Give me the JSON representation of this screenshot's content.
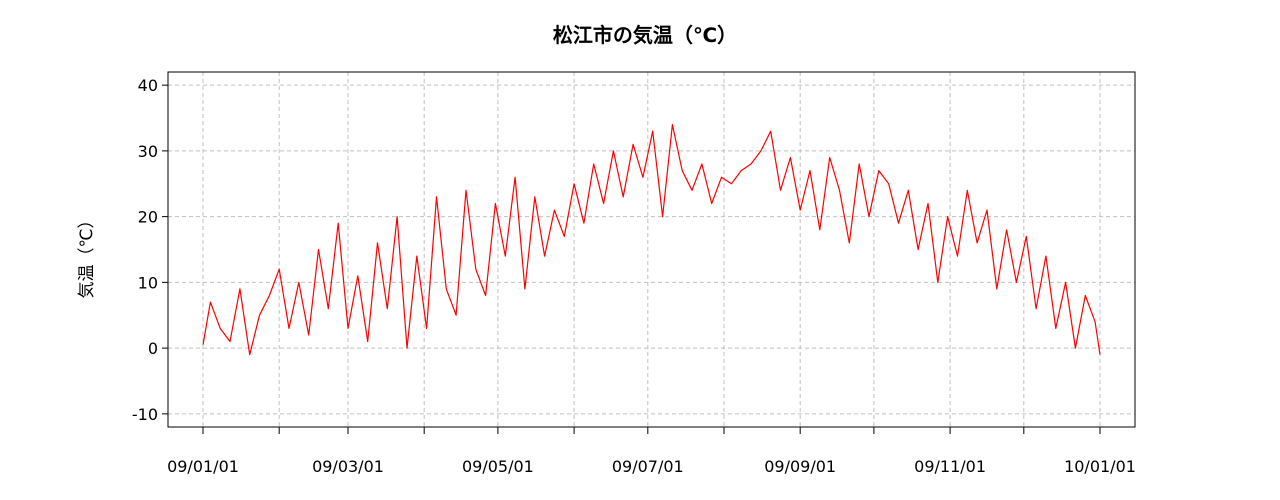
{
  "chart_data": {
    "type": "line",
    "title": "松江市の気温（℃）",
    "xlabel": "",
    "ylabel": "気温（℃）",
    "ylim": [
      -12,
      42
    ],
    "y_ticks": [
      -10,
      0,
      10,
      20,
      30,
      40
    ],
    "x_range": [
      "2009-01-01",
      "2010-01-01"
    ],
    "x_tick_labels": [
      "09/01/01",
      "09/03/01",
      "09/05/01",
      "09/07/01",
      "09/09/01",
      "09/11/01",
      "10/01/01"
    ],
    "x_label_dates": [
      "2009-01-01",
      "2009-03-01",
      "2009-05-01",
      "2009-07-01",
      "2009-09-01",
      "2009-11-01",
      "2010-01-01"
    ],
    "x_tick_dates": [
      "2009-01-01",
      "2009-02-01",
      "2009-03-01",
      "2009-04-01",
      "2009-05-01",
      "2009-06-01",
      "2009-07-01",
      "2009-08-01",
      "2009-09-01",
      "2009-10-01",
      "2009-11-01",
      "2009-12-01",
      "2010-01-01"
    ],
    "grid": true,
    "line_color": "#ff0000",
    "grid_color": "#c0c0c0",
    "series": [
      {
        "x": [
          "2009-01-01",
          "2009-01-04",
          "2009-01-08",
          "2009-01-12",
          "2009-01-16",
          "2009-01-20",
          "2009-01-24",
          "2009-01-28",
          "2009-02-01",
          "2009-02-05",
          "2009-02-09",
          "2009-02-13",
          "2009-02-17",
          "2009-02-21",
          "2009-02-25",
          "2009-03-01",
          "2009-03-05",
          "2009-03-09",
          "2009-03-13",
          "2009-03-17",
          "2009-03-21",
          "2009-03-25",
          "2009-03-29",
          "2009-04-02",
          "2009-04-06",
          "2009-04-10",
          "2009-04-14",
          "2009-04-18",
          "2009-04-22",
          "2009-04-26",
          "2009-04-30",
          "2009-05-04",
          "2009-05-08",
          "2009-05-12",
          "2009-05-16",
          "2009-05-20",
          "2009-05-24",
          "2009-05-28",
          "2009-06-01",
          "2009-06-05",
          "2009-06-09",
          "2009-06-13",
          "2009-06-17",
          "2009-06-21",
          "2009-06-25",
          "2009-06-29",
          "2009-07-03",
          "2009-07-07",
          "2009-07-11",
          "2009-07-15",
          "2009-07-19",
          "2009-07-23",
          "2009-07-27",
          "2009-07-31",
          "2009-08-04",
          "2009-08-08",
          "2009-08-12",
          "2009-08-16",
          "2009-08-20",
          "2009-08-24",
          "2009-08-28",
          "2009-09-01",
          "2009-09-05",
          "2009-09-09",
          "2009-09-13",
          "2009-09-17",
          "2009-09-21",
          "2009-09-25",
          "2009-09-29",
          "2009-10-03",
          "2009-10-07",
          "2009-10-11",
          "2009-10-15",
          "2009-10-19",
          "2009-10-23",
          "2009-10-27",
          "2009-10-31",
          "2009-11-04",
          "2009-11-08",
          "2009-11-12",
          "2009-11-16",
          "2009-11-20",
          "2009-11-24",
          "2009-11-28",
          "2009-12-02",
          "2009-12-06",
          "2009-12-10",
          "2009-12-14",
          "2009-12-18",
          "2009-12-22",
          "2009-12-26",
          "2009-12-30",
          "2010-01-01"
        ],
        "y": [
          0.5,
          7,
          3,
          1,
          9,
          -1,
          5,
          8,
          12,
          3,
          10,
          2,
          15,
          6,
          19,
          3,
          11,
          1,
          16,
          6,
          20,
          0,
          14,
          3,
          23,
          9,
          5,
          24,
          12,
          8,
          22,
          14,
          26,
          9,
          23,
          14,
          21,
          17,
          25,
          19,
          28,
          22,
          30,
          23,
          31,
          26,
          33,
          20,
          34,
          27,
          24,
          28,
          22,
          26,
          25,
          27,
          28,
          30,
          33,
          24,
          29,
          21,
          27,
          18,
          29,
          24,
          16,
          28,
          20,
          27,
          25,
          19,
          24,
          15,
          22,
          10,
          20,
          14,
          24,
          16,
          21,
          9,
          18,
          10,
          17,
          6,
          14,
          3,
          10,
          0,
          8,
          4,
          -1
        ]
      }
    ]
  }
}
